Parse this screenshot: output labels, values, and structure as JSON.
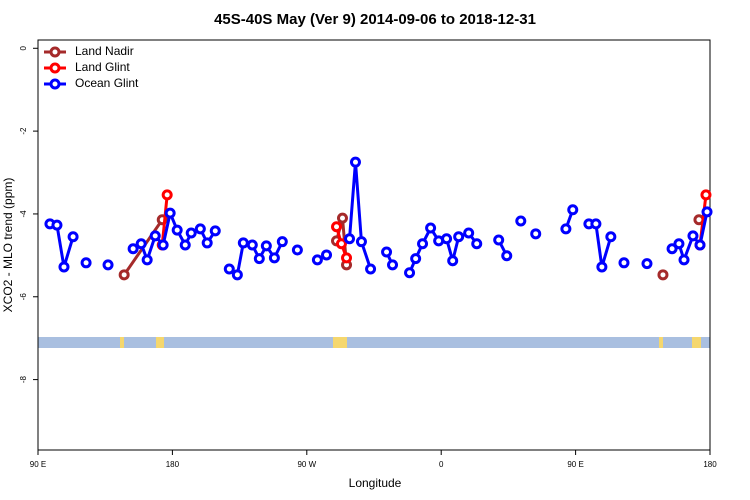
{
  "chart_data": {
    "type": "line",
    "title": "45S-40S May (Ver 9)   2014-09-06 to 2018-12-31",
    "x_label": "Longitude",
    "y_label": "XCO2 - MLO trend (ppm)",
    "xlim": [
      90,
      540
    ],
    "ylim": [
      -9.7,
      0.2
    ],
    "xticks": [
      {
        "value": 90,
        "label": "90 E"
      },
      180,
      {
        "value": 270,
        "label": "90 W"
      },
      {
        "value": 360,
        "label": "0"
      },
      {
        "value": 450,
        "label": "90 E"
      },
      {
        "value": 540,
        "label": "180"
      }
    ],
    "yticks": [
      0,
      -2,
      -4,
      -6,
      -8
    ],
    "legend": "top-left",
    "series": [
      {
        "name": "Land Nadir",
        "color": "#a52a2a",
        "x": [
          147.7,
          173.2,
          null,
          289.9,
          293.9,
          296.6,
          null,
          508.5,
          null,
          532.6
        ],
        "values": [
          -5.47,
          -4.14,
          null,
          -4.65,
          -4.1,
          -5.23,
          null,
          -5.47,
          null,
          -4.14
        ]
      },
      {
        "name": "Land Glint",
        "color": "#ff0000",
        "x": [
          173.2,
          176.5,
          null,
          289.9,
          293.2,
          296.6,
          null,
          533.3,
          537.3
        ],
        "values": [
          -4.75,
          -3.54,
          null,
          -4.31,
          -4.72,
          -5.06,
          null,
          -4.75,
          -3.54
        ]
      },
      {
        "name": "Ocean Glint",
        "color": "#0000ff",
        "x": [
          98.0,
          102.7,
          107.4,
          113.5,
          null,
          122.2,
          null,
          136.9,
          null,
          153.7,
          159.1,
          163.1,
          168.5,
          173.8,
          178.5,
          183.2,
          188.6,
          192.6,
          198.7,
          203.3,
          208.7,
          null,
          218.1,
          223.5,
          227.5,
          233.5,
          238.2,
          242.9,
          248.3,
          253.6,
          null,
          263.7,
          null,
          277.1,
          283.2,
          null,
          298.6,
          302.6,
          306.6,
          312.7,
          null,
          323.4,
          327.4,
          null,
          338.8,
          342.9,
          347.5,
          352.9,
          358.3,
          363.6,
          367.7,
          371.7,
          378.4,
          383.8,
          null,
          398.5,
          403.9,
          null,
          413.3,
          null,
          423.3,
          null,
          443.5,
          448.1,
          null,
          458.9,
          463.6,
          467.6,
          473.6,
          null,
          482.4,
          null,
          497.8,
          null,
          514.6,
          519.2,
          522.6,
          528.6,
          533.3,
          538.0
        ],
        "values": [
          -4.24,
          -4.27,
          -5.28,
          -4.55,
          null,
          -5.18,
          null,
          -5.23,
          null,
          -4.84,
          -4.72,
          -5.11,
          -4.53,
          -4.75,
          -3.98,
          -4.39,
          -4.75,
          -4.46,
          -4.36,
          -4.7,
          -4.41,
          null,
          -5.33,
          -5.47,
          -4.7,
          -4.75,
          -5.08,
          -4.77,
          -5.06,
          -4.67,
          null,
          -4.87,
          null,
          -5.11,
          -4.99,
          null,
          -4.6,
          -2.75,
          -4.67,
          -5.33,
          null,
          -4.92,
          -5.23,
          null,
          -5.42,
          -5.08,
          -4.72,
          -4.34,
          -4.65,
          -4.6,
          -5.13,
          -4.55,
          -4.46,
          -4.72,
          null,
          -4.63,
          -5.01,
          null,
          -4.17,
          null,
          -4.48,
          null,
          -4.36,
          -3.9,
          null,
          -4.24,
          -4.24,
          -5.28,
          -4.55,
          null,
          -5.18,
          null,
          -5.2,
          null,
          -4.84,
          -4.72,
          -5.11,
          -4.53,
          -4.75,
          -3.95
        ]
      }
    ]
  }
}
